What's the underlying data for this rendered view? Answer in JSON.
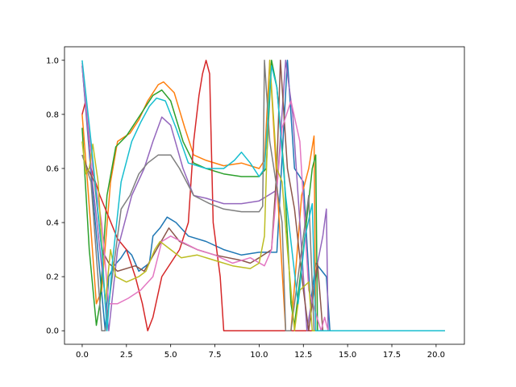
{
  "chart_data": {
    "type": "line",
    "title": "",
    "xlabel": "",
    "ylabel": "",
    "xlim": [
      -1.0,
      21.6
    ],
    "ylim": [
      -0.05,
      1.05
    ],
    "grid": false,
    "legend": "none",
    "x_ticks": [
      "0.0",
      "2.5",
      "5.0",
      "7.5",
      "10.0",
      "12.5",
      "15.0",
      "17.5",
      "20.0"
    ],
    "x_tick_values": [
      0,
      2.5,
      5,
      7.5,
      10,
      12.5,
      15,
      17.5,
      20
    ],
    "y_ticks": [
      "0.0",
      "0.2",
      "0.4",
      "0.6",
      "0.8",
      "1.0"
    ],
    "y_tick_values": [
      0,
      0.2,
      0.4,
      0.6,
      0.8,
      1.0
    ],
    "series": [
      {
        "color": "#1f77b4",
        "points": [
          [
            0,
            0.98
          ],
          [
            0.6,
            0.5
          ],
          [
            1.3,
            0
          ],
          [
            1.5,
            0.2
          ],
          [
            1.8,
            0.24
          ],
          [
            2.2,
            0.27
          ],
          [
            2.5,
            0.3
          ],
          [
            2.8,
            0.28
          ],
          [
            3.2,
            0.22
          ],
          [
            3.8,
            0.25
          ],
          [
            4.0,
            0.35
          ],
          [
            4.4,
            0.38
          ],
          [
            4.8,
            0.42
          ],
          [
            5.3,
            0.4
          ],
          [
            6,
            0.35
          ],
          [
            7,
            0.33
          ],
          [
            8,
            0.3
          ],
          [
            9,
            0.28
          ],
          [
            10,
            0.29
          ],
          [
            11,
            0.29
          ],
          [
            11.6,
            1.0
          ],
          [
            12,
            0.6
          ],
          [
            12.5,
            0.55
          ],
          [
            12.9,
            0.1
          ],
          [
            13.2,
            0.25
          ],
          [
            13.8,
            0.2
          ],
          [
            14,
            0
          ],
          [
            20.5,
            0
          ]
        ]
      },
      {
        "color": "#ff7f0e",
        "points": [
          [
            0,
            0.8
          ],
          [
            0.3,
            0.55
          ],
          [
            0.8,
            0.1
          ],
          [
            1.1,
            0.15
          ],
          [
            1.6,
            0.55
          ],
          [
            2,
            0.7
          ],
          [
            2.7,
            0.73
          ],
          [
            3.2,
            0.78
          ],
          [
            3.7,
            0.85
          ],
          [
            4.3,
            0.91
          ],
          [
            4.6,
            0.92
          ],
          [
            5.2,
            0.88
          ],
          [
            5.8,
            0.75
          ],
          [
            6.3,
            0.65
          ],
          [
            7,
            0.63
          ],
          [
            8,
            0.61
          ],
          [
            9,
            0.62
          ],
          [
            10,
            0.6
          ],
          [
            10.3,
            0.63
          ],
          [
            10.6,
            1.0
          ],
          [
            11.5,
            0
          ],
          [
            11.8,
            0
          ],
          [
            12.4,
            0.5
          ],
          [
            12.8,
            0.6
          ],
          [
            13.1,
            0.72
          ],
          [
            13.2,
            0
          ],
          [
            20.5,
            0
          ]
        ]
      },
      {
        "color": "#2ca02c",
        "points": [
          [
            0,
            0.75
          ],
          [
            0.4,
            0.3
          ],
          [
            0.8,
            0.02
          ],
          [
            1.0,
            0.1
          ],
          [
            1.4,
            0.5
          ],
          [
            1.9,
            0.68
          ],
          [
            2.5,
            0.72
          ],
          [
            3.3,
            0.8
          ],
          [
            4.0,
            0.87
          ],
          [
            4.5,
            0.89
          ],
          [
            5,
            0.85
          ],
          [
            5.7,
            0.7
          ],
          [
            6.3,
            0.62
          ],
          [
            7,
            0.6
          ],
          [
            8,
            0.58
          ],
          [
            9,
            0.57
          ],
          [
            10,
            0.57
          ],
          [
            10.4,
            0.6
          ],
          [
            10.7,
            1.0
          ],
          [
            11,
            0.9
          ],
          [
            11.4,
            0.6
          ],
          [
            11.8,
            0.1
          ],
          [
            12.0,
            0.02
          ],
          [
            12.5,
            0.3
          ],
          [
            13.0,
            0.6
          ],
          [
            13.2,
            0.65
          ],
          [
            13.3,
            0
          ],
          [
            20.5,
            0
          ]
        ]
      },
      {
        "color": "#d62728",
        "points": [
          [
            0,
            0.8
          ],
          [
            0.2,
            0.85
          ],
          [
            0.5,
            0.6
          ],
          [
            1.0,
            0.5
          ],
          [
            1.5,
            0.42
          ],
          [
            2.0,
            0.34
          ],
          [
            2.5,
            0.3
          ],
          [
            3.0,
            0.2
          ],
          [
            3.4,
            0.1
          ],
          [
            3.7,
            0
          ],
          [
            4.0,
            0.05
          ],
          [
            4.5,
            0.2
          ],
          [
            5.5,
            0.3
          ],
          [
            6,
            0.4
          ],
          [
            6.3,
            0.7
          ],
          [
            6.6,
            0.87
          ],
          [
            6.8,
            0.95
          ],
          [
            7.0,
            1.0
          ],
          [
            7.2,
            0.95
          ],
          [
            7.4,
            0.4
          ],
          [
            7.8,
            0.2
          ],
          [
            8.0,
            0
          ],
          [
            20.5,
            0
          ]
        ]
      },
      {
        "color": "#9467bd",
        "points": [
          [
            0,
            0.98
          ],
          [
            0.5,
            0.6
          ],
          [
            1.0,
            0.3
          ],
          [
            1.5,
            0
          ],
          [
            2,
            0.3
          ],
          [
            2.8,
            0.5
          ],
          [
            3.5,
            0.6
          ],
          [
            4,
            0.7
          ],
          [
            4.5,
            0.79
          ],
          [
            5,
            0.76
          ],
          [
            5.7,
            0.6
          ],
          [
            6.3,
            0.5
          ],
          [
            7,
            0.49
          ],
          [
            8,
            0.47
          ],
          [
            9,
            0.47
          ],
          [
            10,
            0.48
          ],
          [
            10.5,
            0.5
          ],
          [
            11,
            0.52
          ],
          [
            11.5,
            1.0
          ],
          [
            11.9,
            0.8
          ],
          [
            12.5,
            0.2
          ],
          [
            12.7,
            0
          ],
          [
            13.3,
            0.25
          ],
          [
            13.6,
            0.35
          ],
          [
            13.8,
            0.45
          ],
          [
            13.9,
            0
          ],
          [
            20.5,
            0
          ]
        ]
      },
      {
        "color": "#8c564b",
        "points": [
          [
            0,
            0.65
          ],
          [
            0.3,
            0.6
          ],
          [
            0.7,
            0.55
          ],
          [
            1.1,
            0.3
          ],
          [
            1.5,
            0.25
          ],
          [
            2,
            0.22
          ],
          [
            3,
            0.24
          ],
          [
            3.5,
            0.22
          ],
          [
            4.2,
            0.3
          ],
          [
            4.9,
            0.38
          ],
          [
            5.5,
            0.33
          ],
          [
            6.5,
            0.3
          ],
          [
            7.5,
            0.28
          ],
          [
            9,
            0.26
          ],
          [
            9.5,
            0.25
          ],
          [
            10,
            0.27
          ],
          [
            10.7,
            0.3
          ],
          [
            11.0,
            0.6
          ],
          [
            11.2,
            1.0
          ],
          [
            11.6,
            0.6
          ],
          [
            12,
            0.45
          ],
          [
            12.5,
            0.15
          ],
          [
            12.8,
            0
          ],
          [
            13.3,
            0.25
          ],
          [
            13.6,
            0
          ],
          [
            20.5,
            0
          ]
        ]
      },
      {
        "color": "#e377c2",
        "points": [
          [
            0,
            0.99
          ],
          [
            0.6,
            0.6
          ],
          [
            1.1,
            0.4
          ],
          [
            1.5,
            0.1
          ],
          [
            2,
            0.1
          ],
          [
            2.6,
            0.12
          ],
          [
            3.3,
            0.15
          ],
          [
            4.0,
            0.2
          ],
          [
            4.5,
            0.33
          ],
          [
            5.0,
            0.35
          ],
          [
            6.5,
            0.3
          ],
          [
            7.5,
            0.28
          ],
          [
            8.5,
            0.25
          ],
          [
            9.5,
            0.27
          ],
          [
            10.3,
            0.24
          ],
          [
            10.7,
            0.3
          ],
          [
            11.3,
            0.75
          ],
          [
            11.8,
            0.85
          ],
          [
            12.3,
            0.7
          ],
          [
            12.8,
            0.15
          ],
          [
            13.5,
            0
          ],
          [
            13.7,
            0.05
          ],
          [
            13.9,
            0
          ],
          [
            20.5,
            0
          ]
        ]
      },
      {
        "color": "#7f7f7f",
        "points": [
          [
            0,
            0.65
          ],
          [
            0.5,
            0.55
          ],
          [
            1.0,
            0.1
          ],
          [
            1.1,
            0
          ],
          [
            1.3,
            0
          ],
          [
            1.7,
            0.2
          ],
          [
            2.2,
            0.45
          ],
          [
            2.7,
            0.5
          ],
          [
            3.2,
            0.58
          ],
          [
            3.7,
            0.62
          ],
          [
            4.3,
            0.65
          ],
          [
            5,
            0.65
          ],
          [
            5.5,
            0.6
          ],
          [
            6.3,
            0.5
          ],
          [
            7.2,
            0.47
          ],
          [
            8,
            0.45
          ],
          [
            9,
            0.44
          ],
          [
            10,
            0.44
          ],
          [
            10.2,
            0.46
          ],
          [
            10.3,
            1.0
          ],
          [
            10.6,
            0.7
          ],
          [
            11.3,
            0.4
          ],
          [
            11.5,
            0
          ],
          [
            11.8,
            0
          ],
          [
            12.2,
            0.2
          ],
          [
            12.8,
            0.5
          ],
          [
            13.1,
            0
          ],
          [
            20.5,
            0
          ]
        ]
      },
      {
        "color": "#bcbd22",
        "points": [
          [
            0,
            0.7
          ],
          [
            0.2,
            0.58
          ],
          [
            0.4,
            0.6
          ],
          [
            0.6,
            0.69
          ],
          [
            0.9,
            0.55
          ],
          [
            1.3,
            0.1
          ],
          [
            1.6,
            0.3
          ],
          [
            1.9,
            0.2
          ],
          [
            2.5,
            0.18
          ],
          [
            3.2,
            0.2
          ],
          [
            3.6,
            0.22
          ],
          [
            4.1,
            0.3
          ],
          [
            4.4,
            0.33
          ],
          [
            5,
            0.3
          ],
          [
            5.6,
            0.27
          ],
          [
            6.5,
            0.28
          ],
          [
            7.5,
            0.26
          ],
          [
            8.5,
            0.24
          ],
          [
            9.5,
            0.23
          ],
          [
            10.0,
            0.25
          ],
          [
            10.3,
            0.35
          ],
          [
            10.6,
            1.0
          ],
          [
            11,
            0.6
          ],
          [
            11.3,
            0.55
          ],
          [
            11.6,
            0.3
          ],
          [
            12.0,
            0
          ],
          [
            12.3,
            0.15
          ],
          [
            12.8,
            0.18
          ],
          [
            13.0,
            0
          ],
          [
            20.5,
            0
          ]
        ]
      },
      {
        "color": "#17becf",
        "points": [
          [
            0,
            1.0
          ],
          [
            0.5,
            0.7
          ],
          [
            1.1,
            0.3
          ],
          [
            1.4,
            0
          ],
          [
            1.7,
            0.25
          ],
          [
            2.2,
            0.55
          ],
          [
            2.8,
            0.7
          ],
          [
            3.3,
            0.77
          ],
          [
            3.8,
            0.83
          ],
          [
            4.2,
            0.86
          ],
          [
            4.7,
            0.85
          ],
          [
            5.3,
            0.75
          ],
          [
            6,
            0.62
          ],
          [
            7,
            0.6
          ],
          [
            8,
            0.6
          ],
          [
            8.6,
            0.63
          ],
          [
            9,
            0.66
          ],
          [
            9.5,
            0.62
          ],
          [
            10,
            0.57
          ],
          [
            10.3,
            0.6
          ],
          [
            10.7,
            0.98
          ],
          [
            11,
            0.9
          ],
          [
            11.5,
            0.5
          ],
          [
            12.2,
            0.1
          ],
          [
            12.6,
            0.35
          ],
          [
            13.0,
            0.47
          ],
          [
            13.2,
            0
          ],
          [
            20.5,
            0
          ]
        ]
      }
    ]
  }
}
